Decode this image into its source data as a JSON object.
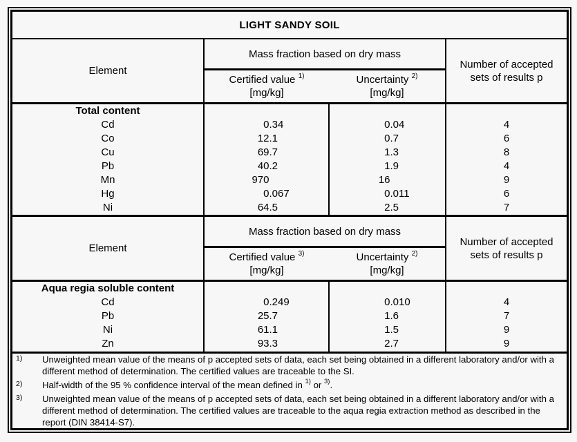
{
  "title": "LIGHT SANDY SOIL",
  "header": {
    "element_label": "Element",
    "group_label": "Mass fraction based on dry mass",
    "unit": "[mg/kg]",
    "accepted_line1": "Number of accepted",
    "accepted_line2": "sets of results p"
  },
  "sections": [
    {
      "certified_label": "Certified value",
      "certified_note": "1)",
      "uncertainty_label": "Uncertainty",
      "uncertainty_note": "2)",
      "group_title": "Total content",
      "rows": [
        {
          "element": "Cd",
          "certified": "0.34",
          "uncertainty": "0.04",
          "p": "4"
        },
        {
          "element": "Co",
          "certified": "12.1",
          "uncertainty": "0.7",
          "p": "6"
        },
        {
          "element": "Cu",
          "certified": "69.7",
          "uncertainty": "1.3",
          "p": "8"
        },
        {
          "element": "Pb",
          "certified": "40.2",
          "uncertainty": "1.9",
          "p": "4"
        },
        {
          "element": "Mn",
          "certified": "970",
          "uncertainty": "16",
          "p": "9"
        },
        {
          "element": "Hg",
          "certified": "0.067",
          "uncertainty": "0.011",
          "p": "6"
        },
        {
          "element": "Ni",
          "certified": "64.5",
          "uncertainty": "2.5",
          "p": "7"
        }
      ]
    },
    {
      "certified_label": "Certified value",
      "certified_note": "3)",
      "uncertainty_label": "Uncertainty",
      "uncertainty_note": "2)",
      "group_title": "Aqua regia soluble content",
      "rows": [
        {
          "element": "Cd",
          "certified": "0.249",
          "uncertainty": "0.010",
          "p": "4"
        },
        {
          "element": "Pb",
          "certified": "25.7",
          "uncertainty": "1.6",
          "p": "7"
        },
        {
          "element": "Ni",
          "certified": "61.1",
          "uncertainty": "1.5",
          "p": "9"
        },
        {
          "element": "Zn",
          "certified": "93.3",
          "uncertainty": "2.7",
          "p": "9"
        }
      ]
    }
  ],
  "footnotes": [
    {
      "marker": "1)",
      "segments": [
        {
          "text": "Unweighted mean value of the means of p accepted sets of data, each set being obtained in a different laboratory and/or with a different method of determination. The certified values are traceable to the SI."
        }
      ]
    },
    {
      "marker": "2)",
      "segments": [
        {
          "text": "Half-width of the 95 % confidence interval of the mean defined in "
        },
        {
          "sup": "1)"
        },
        {
          "text": " or "
        },
        {
          "sup": "3)"
        },
        {
          "text": "."
        }
      ]
    },
    {
      "marker": "3)",
      "segments": [
        {
          "text": "Unweighted mean value of the means of p accepted sets of data, each set being obtained in a different laboratory and/or with a different method of determination. The certified values are traceable to the aqua regia extraction method as described in the report (DIN 38414-S7)."
        }
      ]
    }
  ]
}
